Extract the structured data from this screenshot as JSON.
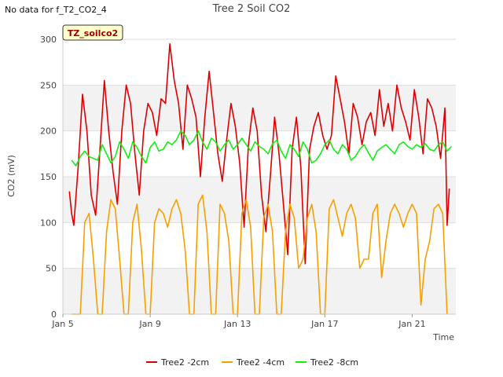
{
  "header": {
    "no_data_text": "No data for f_T2_CO2_4",
    "title": "Tree 2 Soil CO2"
  },
  "badge": {
    "text": "TZ_soilco2"
  },
  "chart_data": {
    "type": "line",
    "title": "Tree 2 Soil CO2",
    "xlabel": "Time",
    "ylabel": "CO2 (mV)",
    "ylim": [
      0,
      300
    ],
    "xlim": [
      5.0,
      23.0
    ],
    "yticks": [
      0,
      50,
      100,
      150,
      200,
      250,
      300
    ],
    "xticks": [
      {
        "day": 5,
        "label": "Jan 5"
      },
      {
        "day": 9,
        "label": "Jan 9"
      },
      {
        "day": 13,
        "label": "Jan 13"
      },
      {
        "day": 17,
        "label": "Jan 17"
      },
      {
        "day": 21,
        "label": "Jan 21"
      }
    ],
    "grid": "horizontal bands",
    "legend_position": "bottom",
    "series": [
      {
        "name": "Tree2 -2cm",
        "color": "#dd0000",
        "x": [
          5.3,
          5.4,
          5.5,
          5.7,
          5.9,
          6.1,
          6.3,
          6.5,
          6.7,
          6.9,
          7.1,
          7.3,
          7.5,
          7.7,
          7.9,
          8.1,
          8.3,
          8.5,
          8.7,
          8.9,
          9.1,
          9.3,
          9.5,
          9.7,
          9.9,
          10.1,
          10.3,
          10.5,
          10.7,
          10.9,
          11.1,
          11.3,
          11.5,
          11.7,
          11.9,
          12.1,
          12.3,
          12.5,
          12.7,
          12.9,
          13.1,
          13.3,
          13.5,
          13.7,
          13.9,
          14.1,
          14.3,
          14.5,
          14.7,
          14.9,
          15.1,
          15.3,
          15.5,
          15.7,
          15.9,
          16.1,
          16.3,
          16.5,
          16.7,
          16.9,
          17.1,
          17.3,
          17.5,
          17.7,
          17.9,
          18.1,
          18.3,
          18.5,
          18.7,
          18.9,
          19.1,
          19.3,
          19.5,
          19.7,
          19.9,
          20.1,
          20.3,
          20.5,
          20.7,
          20.9,
          21.1,
          21.3,
          21.5,
          21.7,
          21.9,
          22.1,
          22.3,
          22.5,
          22.6,
          22.7
        ],
        "y": [
          134,
          110,
          97,
          160,
          240,
          200,
          130,
          108,
          180,
          255,
          200,
          155,
          120,
          200,
          250,
          230,
          175,
          130,
          200,
          230,
          220,
          195,
          235,
          230,
          295,
          255,
          230,
          180,
          250,
          235,
          215,
          150,
          215,
          265,
          220,
          175,
          145,
          190,
          230,
          205,
          165,
          95,
          185,
          225,
          200,
          130,
          90,
          150,
          215,
          175,
          120,
          65,
          180,
          215,
          160,
          55,
          180,
          205,
          220,
          195,
          180,
          195,
          260,
          235,
          210,
          175,
          230,
          215,
          185,
          210,
          220,
          195,
          245,
          205,
          230,
          200,
          250,
          225,
          210,
          190,
          245,
          215,
          175,
          235,
          225,
          205,
          170,
          225,
          97,
          137
        ]
      },
      {
        "name": "Tree2 -4cm",
        "color": "#f5a000",
        "x": [
          5.4,
          5.6,
          5.8,
          6.0,
          6.2,
          6.4,
          6.6,
          6.8,
          7.0,
          7.2,
          7.4,
          7.6,
          7.8,
          8.0,
          8.2,
          8.4,
          8.6,
          8.8,
          9.0,
          9.2,
          9.4,
          9.6,
          9.8,
          10.0,
          10.2,
          10.4,
          10.6,
          10.8,
          11.0,
          11.2,
          11.4,
          11.6,
          11.8,
          12.0,
          12.2,
          12.4,
          12.6,
          12.8,
          13.0,
          13.2,
          13.4,
          13.6,
          13.8,
          14.0,
          14.2,
          14.4,
          14.6,
          14.8,
          15.0,
          15.2,
          15.4,
          15.6,
          15.8,
          16.0,
          16.2,
          16.4,
          16.6,
          16.8,
          17.0,
          17.2,
          17.4,
          17.6,
          17.8,
          18.0,
          18.2,
          18.4,
          18.6,
          18.8,
          19.0,
          19.2,
          19.4,
          19.6,
          19.8,
          20.0,
          20.2,
          20.4,
          20.6,
          20.8,
          21.0,
          21.2,
          21.4,
          21.6,
          21.8,
          22.0,
          22.2,
          22.4,
          22.6
        ],
        "y": [
          0,
          0,
          0,
          100,
          110,
          60,
          0,
          0,
          90,
          125,
          115,
          60,
          0,
          0,
          100,
          120,
          70,
          0,
          0,
          100,
          115,
          110,
          95,
          115,
          125,
          110,
          70,
          0,
          0,
          120,
          130,
          90,
          0,
          0,
          120,
          110,
          80,
          0,
          0,
          110,
          125,
          95,
          0,
          0,
          105,
          120,
          90,
          0,
          0,
          90,
          120,
          105,
          50,
          60,
          105,
          120,
          90,
          0,
          0,
          115,
          125,
          105,
          85,
          110,
          120,
          105,
          50,
          60,
          60,
          110,
          120,
          40,
          80,
          110,
          120,
          110,
          95,
          110,
          120,
          110,
          10,
          60,
          80,
          115,
          120,
          110,
          0
        ]
      },
      {
        "name": "Tree2 -8cm",
        "color": "#11ee11",
        "x": [
          5.4,
          5.6,
          5.8,
          6.0,
          6.2,
          6.4,
          6.6,
          6.8,
          7.0,
          7.2,
          7.4,
          7.6,
          7.8,
          8.0,
          8.2,
          8.4,
          8.6,
          8.8,
          9.0,
          9.2,
          9.4,
          9.6,
          9.8,
          10.0,
          10.2,
          10.4,
          10.6,
          10.8,
          11.0,
          11.2,
          11.4,
          11.6,
          11.8,
          12.0,
          12.2,
          12.4,
          12.6,
          12.8,
          13.0,
          13.2,
          13.4,
          13.6,
          13.8,
          14.0,
          14.2,
          14.4,
          14.6,
          14.8,
          15.0,
          15.2,
          15.4,
          15.6,
          15.8,
          16.0,
          16.2,
          16.4,
          16.6,
          16.8,
          17.0,
          17.2,
          17.4,
          17.6,
          17.8,
          18.0,
          18.2,
          18.4,
          18.6,
          18.8,
          19.0,
          19.2,
          19.4,
          19.6,
          19.8,
          20.0,
          20.2,
          20.4,
          20.6,
          20.8,
          21.0,
          21.2,
          21.4,
          21.6,
          21.8,
          22.0,
          22.2,
          22.4,
          22.6,
          22.8
        ],
        "y": [
          168,
          162,
          172,
          178,
          172,
          170,
          168,
          185,
          175,
          165,
          172,
          188,
          180,
          170,
          188,
          182,
          172,
          165,
          182,
          188,
          178,
          180,
          188,
          185,
          190,
          200,
          195,
          185,
          190,
          200,
          188,
          180,
          192,
          188,
          178,
          185,
          190,
          180,
          185,
          192,
          185,
          178,
          188,
          183,
          180,
          175,
          186,
          190,
          178,
          170,
          185,
          180,
          172,
          188,
          180,
          165,
          168,
          175,
          185,
          190,
          180,
          175,
          185,
          180,
          168,
          172,
          180,
          185,
          176,
          168,
          178,
          182,
          185,
          180,
          175,
          185,
          188,
          183,
          180,
          185,
          182,
          186,
          180,
          178,
          185,
          188,
          178,
          183
        ]
      }
    ]
  }
}
